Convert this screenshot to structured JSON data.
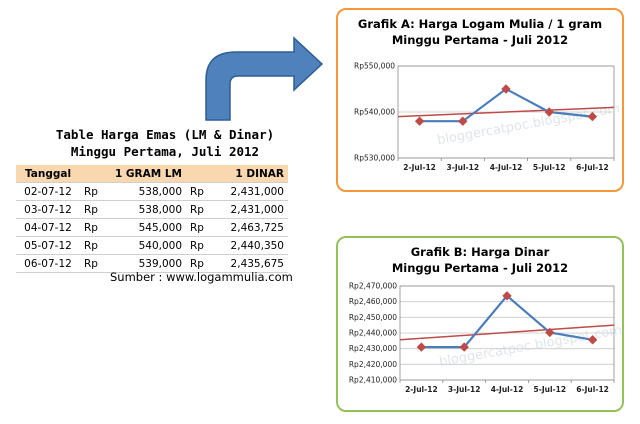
{
  "table": {
    "title_line1": "Table Harga Emas (LM & Dinar)",
    "title_line2": "Minggu Pertama, Juli 2012",
    "headers": {
      "date": "Tanggal",
      "lm": "1 GRAM LM",
      "dinar": "1 DINAR"
    },
    "currency": "Rp",
    "rows": [
      {
        "date": "02-07-12",
        "lm": "538,000",
        "dinar": "2,431,000"
      },
      {
        "date": "03-07-12",
        "lm": "538,000",
        "dinar": "2,431,000"
      },
      {
        "date": "04-07-12",
        "lm": "545,000",
        "dinar": "2,463,725"
      },
      {
        "date": "05-07-12",
        "lm": "540,000",
        "dinar": "2,440,350"
      },
      {
        "date": "06-07-12",
        "lm": "539,000",
        "dinar": "2,435,675"
      }
    ],
    "source": "Sumber : www.logammulia.com"
  },
  "chart_data": [
    {
      "type": "line",
      "title_line1": "Grafik A: Harga Logam Mulia / 1 gram",
      "title_line2": "Minggu Pertama - Juli 2012",
      "categories": [
        "2-Jul-12",
        "3-Jul-12",
        "4-Jul-12",
        "5-Jul-12",
        "6-Jul-12"
      ],
      "series": [
        {
          "values": [
            538000,
            538000,
            545000,
            540000,
            539000
          ],
          "color": "#4a7ebb"
        }
      ],
      "trendline": {
        "color": "#be4b48"
      },
      "ylim": [
        530000,
        550000
      ],
      "yticks": [
        530000,
        540000,
        550000
      ],
      "ytick_labels": [
        "Rp530,000",
        "Rp540,000",
        "Rp550,000"
      ],
      "grid": true,
      "marker_color": "#be4b48",
      "watermark": "bloggercatpoc.blogspot.com"
    },
    {
      "type": "line",
      "title_line1": "Grafik B: Harga Dinar",
      "title_line2": "Minggu Pertama - Juli 2012",
      "categories": [
        "2-Jul-12",
        "3-Jul-12",
        "4-Jul-12",
        "5-Jul-12",
        "6-Jul-12"
      ],
      "series": [
        {
          "values": [
            2431000,
            2431000,
            2463725,
            2440350,
            2435675
          ],
          "color": "#4a7ebb"
        }
      ],
      "trendline": {
        "color": "#be4b48"
      },
      "ylim": [
        2410000,
        2470000
      ],
      "yticks": [
        2410000,
        2420000,
        2430000,
        2440000,
        2450000,
        2460000,
        2470000
      ],
      "ytick_labels": [
        "Rp2,410,000",
        "Rp2,420,000",
        "Rp2,430,000",
        "Rp2,440,000",
        "Rp2,450,000",
        "Rp2,460,000",
        "Rp2,470,000"
      ],
      "grid": true,
      "marker_color": "#be4b48",
      "watermark": "bloggercatpoc.blogspot.com"
    }
  ]
}
